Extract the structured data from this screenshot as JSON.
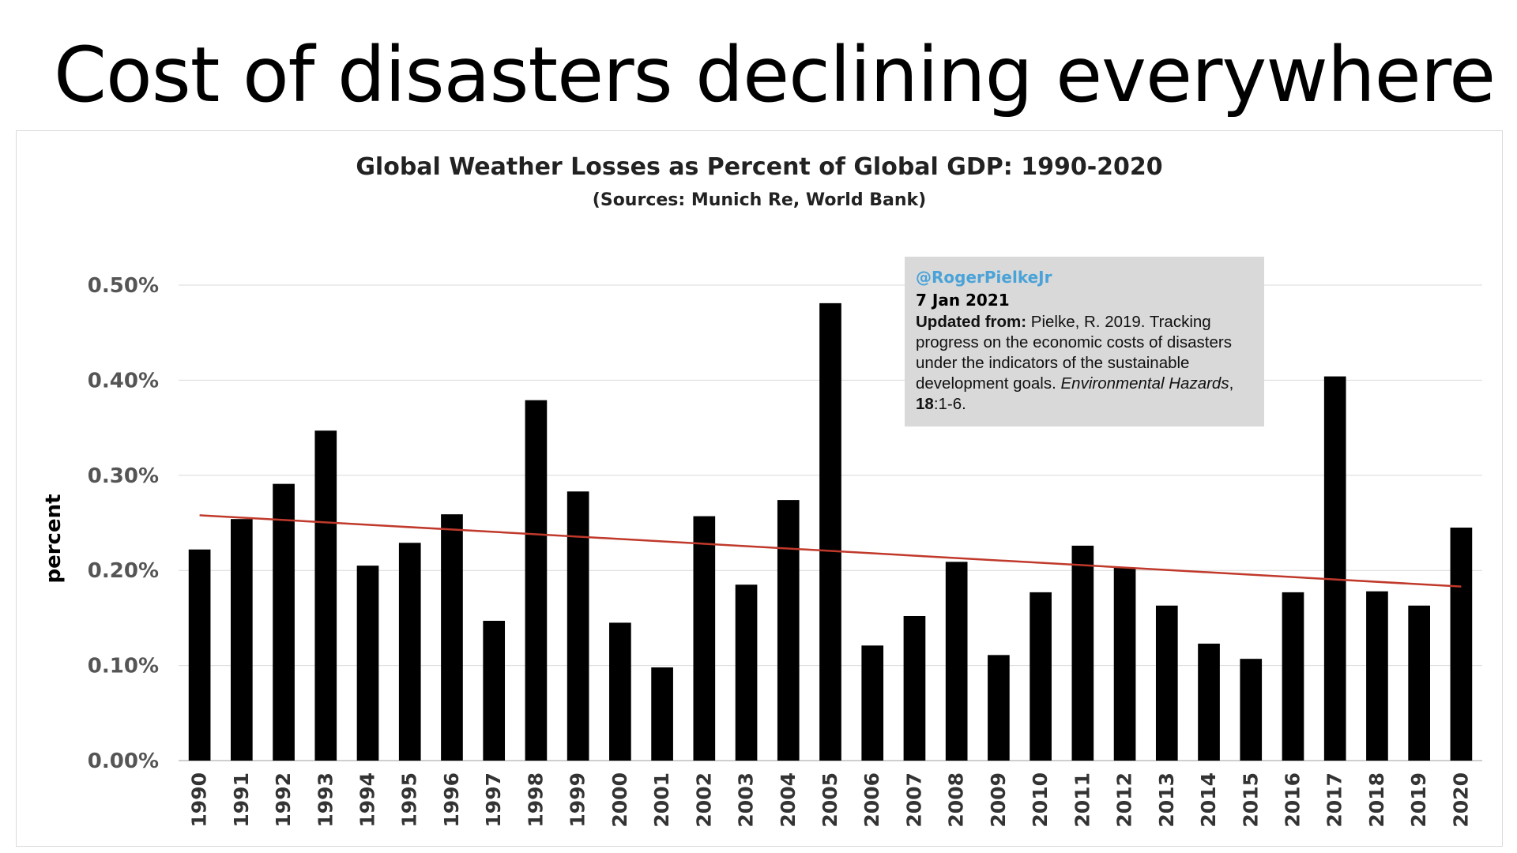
{
  "slide": {
    "title": "Cost of disasters declining everywhere"
  },
  "note": {
    "handle": "@RogerPielkeJr",
    "date": "7 Jan 2021",
    "prefix": "Updated from:",
    "citation": "Pielke, R. 2019. Tracking progress on the economic costs of disasters under the indicators of the sustainable development goals.",
    "journal": "Environmental Hazards",
    "comma": ",",
    "volume": "18",
    "pages": ":1-6."
  },
  "chart_data": {
    "type": "bar",
    "title": "Global Weather Losses as Percent of Global GDP: 1990-2020",
    "subtitle": "(Sources: Munich Re, World Bank)",
    "xlabel": "",
    "ylabel": "percent",
    "ylim": [
      0,
      0.5
    ],
    "yticks": [
      0.0,
      0.1,
      0.2,
      0.3,
      0.4,
      0.5
    ],
    "ytick_labels": [
      "0.00%",
      "0.10%",
      "0.20%",
      "0.30%",
      "0.40%",
      "0.50%"
    ],
    "grid": true,
    "categories": [
      "1990",
      "1991",
      "1992",
      "1993",
      "1994",
      "1995",
      "1996",
      "1997",
      "1998",
      "1999",
      "2000",
      "2001",
      "2002",
      "2003",
      "2004",
      "2005",
      "2006",
      "2007",
      "2008",
      "2009",
      "2010",
      "2011",
      "2012",
      "2013",
      "2014",
      "2015",
      "2016",
      "2017",
      "2018",
      "2019",
      "2020"
    ],
    "values": [
      0.222,
      0.254,
      0.291,
      0.347,
      0.205,
      0.229,
      0.259,
      0.147,
      0.379,
      0.283,
      0.145,
      0.098,
      0.257,
      0.185,
      0.274,
      0.481,
      0.121,
      0.152,
      0.209,
      0.111,
      0.177,
      0.226,
      0.203,
      0.163,
      0.123,
      0.107,
      0.177,
      0.404,
      0.178,
      0.163,
      0.245
    ],
    "bar_color": "#000000",
    "trendline": {
      "color": "#c0392b",
      "start": 0.258,
      "end": 0.183
    }
  }
}
